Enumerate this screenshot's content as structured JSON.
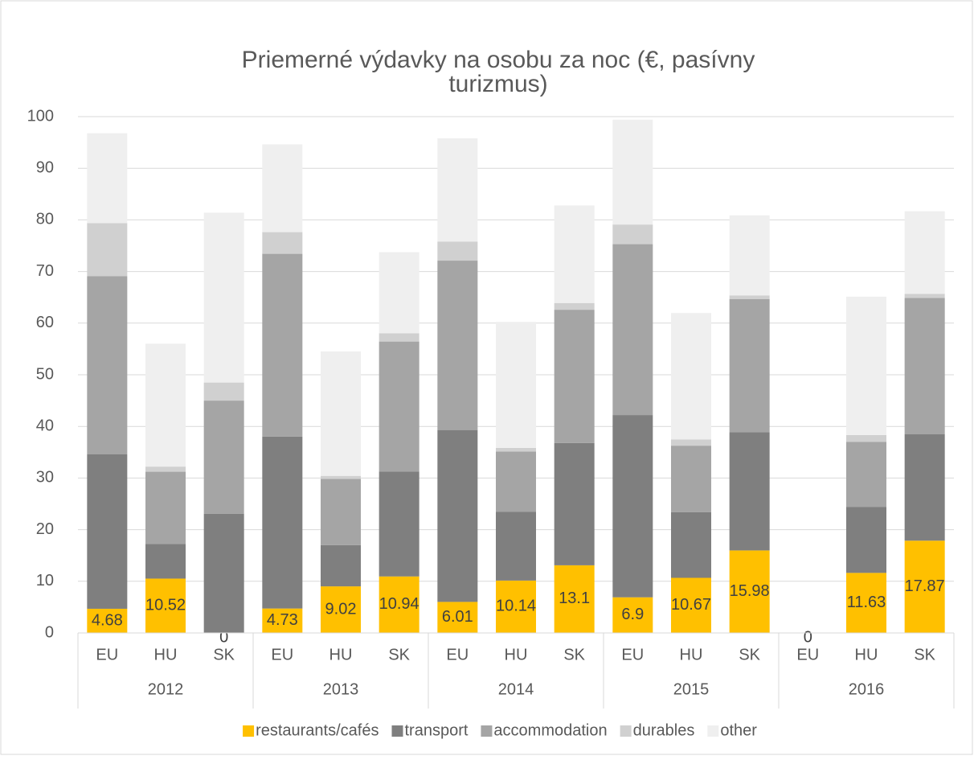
{
  "chart_data": {
    "type": "stacked_bar",
    "title": "Priemerné výdavky na osobu za noc (€, pasívny turizmus)",
    "categories": [
      "EU",
      "HU",
      "SK",
      "EU",
      "HU",
      "SK",
      "EU",
      "HU",
      "SK",
      "EU",
      "HU",
      "SK",
      "EU",
      "HU",
      "SK"
    ],
    "category_groups": [
      "2012",
      "2013",
      "2014",
      "2015",
      "2016"
    ],
    "series": [
      {
        "name": "restaurants/cafés",
        "color": "#ffc000",
        "data_labels": true,
        "values": [
          4.68,
          10.52,
          0,
          4.73,
          9.02,
          10.94,
          6.01,
          10.14,
          13.1,
          6.9,
          10.67,
          15.98,
          0,
          11.63,
          17.87
        ]
      },
      {
        "name": "transport",
        "color": "#7f7f7f",
        "values": [
          29.9,
          6.7,
          23.1,
          33.3,
          8.0,
          20.3,
          33.3,
          13.3,
          23.7,
          35.3,
          12.7,
          22.9,
          0,
          12.8,
          20.6
        ]
      },
      {
        "name": "accommodation",
        "color": "#a5a5a5",
        "values": [
          34.5,
          14.0,
          21.9,
          35.4,
          12.8,
          25.2,
          32.8,
          11.7,
          25.8,
          33.1,
          12.9,
          25.8,
          0,
          12.6,
          26.4
        ]
      },
      {
        "name": "durables",
        "color": "#d0d0d0",
        "values": [
          10.3,
          1.0,
          3.5,
          4.2,
          0.6,
          1.6,
          3.7,
          0.7,
          1.3,
          3.8,
          1.2,
          0.7,
          0,
          1.3,
          0.8
        ]
      },
      {
        "name": "other",
        "color": "#efefef",
        "values": [
          17.4,
          23.8,
          32.9,
          17.0,
          24.1,
          15.7,
          20.0,
          24.4,
          18.9,
          20.3,
          24.5,
          15.5,
          0,
          26.8,
          16.0
        ]
      }
    ],
    "ylim": [
      0,
      100
    ],
    "yticks": [
      0,
      10,
      20,
      30,
      40,
      50,
      60,
      70,
      80,
      90,
      100
    ],
    "grid": true,
    "legend": "bottom"
  }
}
